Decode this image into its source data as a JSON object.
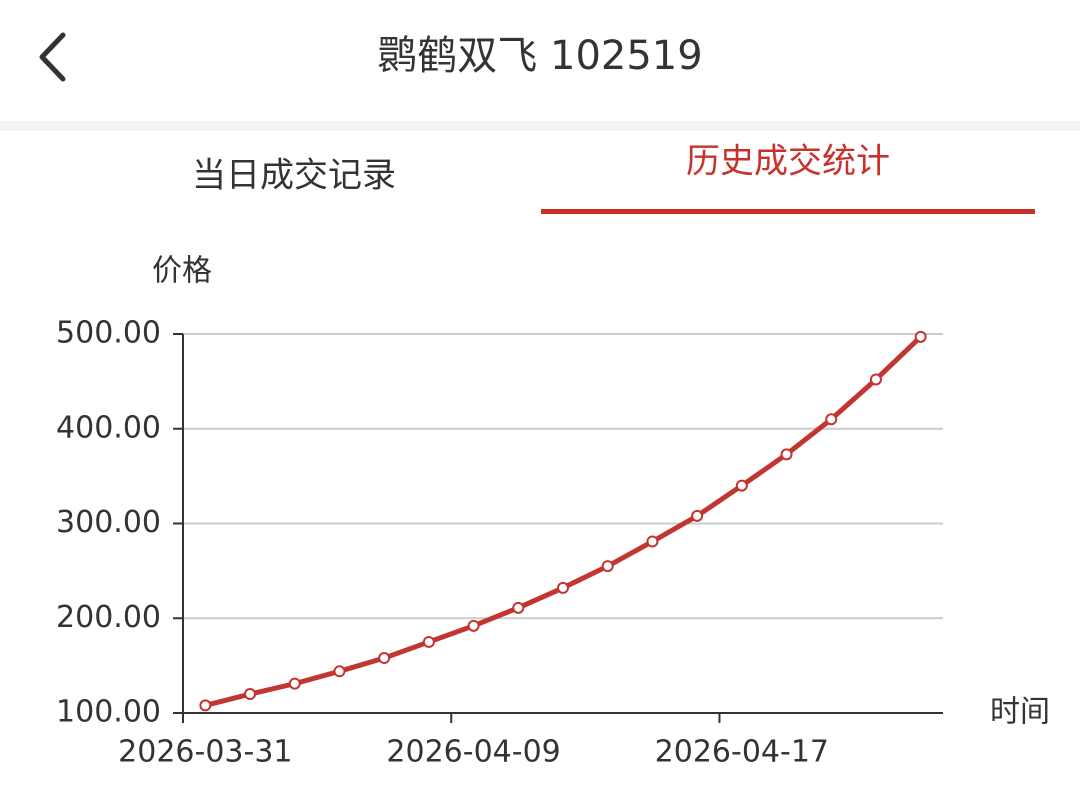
{
  "header": {
    "title": "鹮鹤双飞 102519"
  },
  "tabs": [
    "当日成交记录",
    "历史成交统计"
  ],
  "chart_data": {
    "type": "line",
    "ylabel": "价格",
    "xlabel": "时间",
    "categories": [
      "2026-03-31",
      null,
      null,
      null,
      null,
      null,
      "2026-04-09",
      null,
      null,
      null,
      null,
      null,
      "2026-04-17",
      null,
      null,
      null,
      null
    ],
    "values": [
      108,
      120,
      131,
      144,
      158,
      175,
      192,
      211,
      232,
      255,
      281,
      308,
      340,
      373,
      410,
      452,
      497
    ],
    "color": "#c23531",
    "ylim": [
      100,
      500
    ],
    "yticks": [
      {
        "value": 100,
        "label": "100.00"
      },
      {
        "value": 200,
        "label": "200.00"
      },
      {
        "value": 300,
        "label": "300.00"
      },
      {
        "value": 400,
        "label": "400.00"
      },
      {
        "value": 500,
        "label": "500.00"
      }
    ],
    "grid": true
  }
}
